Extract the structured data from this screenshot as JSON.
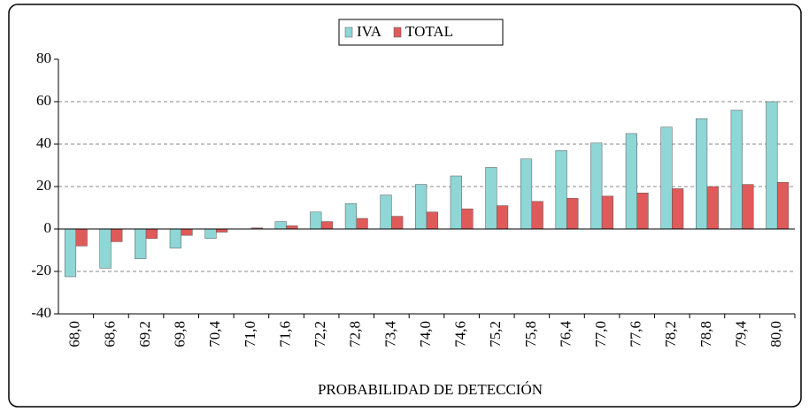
{
  "chart_data": {
    "type": "bar",
    "x_label": "PROBABILIDAD DE DETECCIÓN",
    "categories": [
      "68,0",
      "68,6",
      "69,2",
      "69,8",
      "70,4",
      "71,0",
      "71,6",
      "72,2",
      "72,8",
      "73,4",
      "74,0",
      "74,6",
      "75,2",
      "75,8",
      "76,4",
      "77,0",
      "77,6",
      "78,2",
      "78,8",
      "79,4",
      "80,0"
    ],
    "series": [
      {
        "name": "IVA",
        "color": "#8fd6d6",
        "values": [
          -22.5,
          -18.5,
          -14,
          -9,
          -4.5,
          0,
          3.5,
          8,
          12,
          16,
          21,
          25,
          29,
          33,
          37,
          40.5,
          45,
          48,
          52,
          56,
          60
        ]
      },
      {
        "name": "TOTAL",
        "color": "#e05a5a",
        "values": [
          -8,
          -6,
          -4.5,
          -3,
          -1.5,
          0.5,
          1.5,
          3.5,
          5,
          6,
          8,
          9.5,
          11,
          13,
          14.5,
          15.5,
          17,
          19,
          20,
          21,
          22
        ]
      }
    ],
    "ylim": [
      -40,
      80
    ],
    "yticks": [
      -40,
      -20,
      0,
      20,
      40,
      60,
      80
    ],
    "grid": true,
    "legend": "top"
  }
}
